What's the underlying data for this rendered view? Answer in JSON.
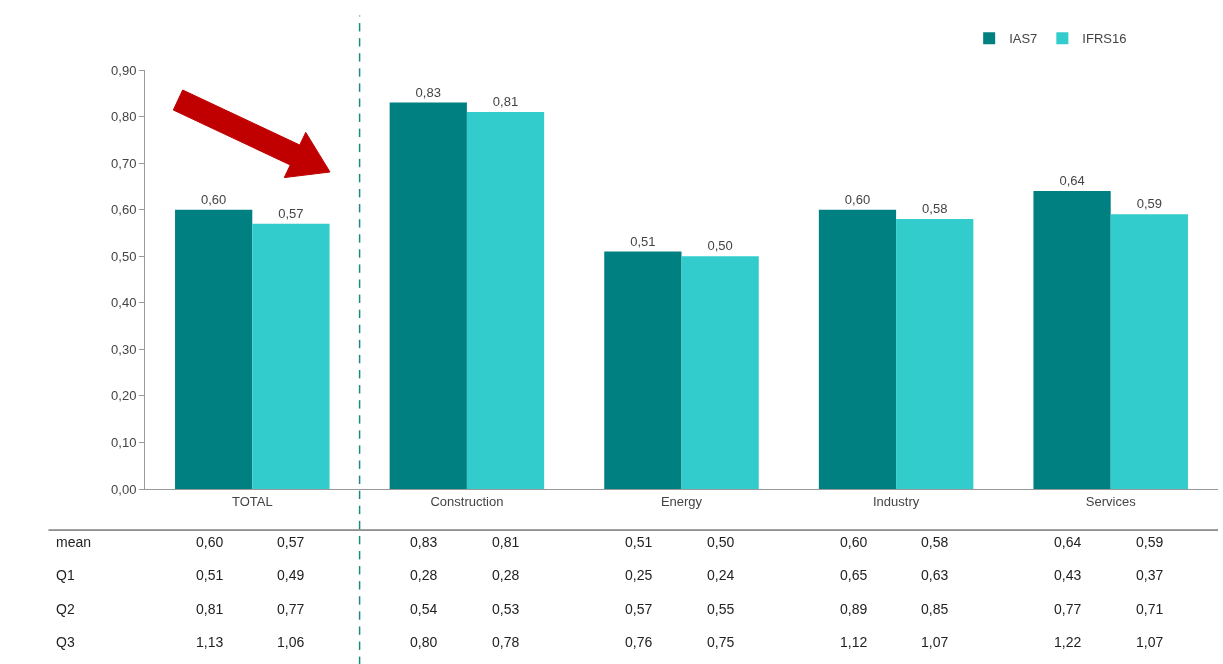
{
  "chart_data": {
    "type": "bar",
    "categories": [
      "TOTAL",
      "Construction",
      "Energy",
      "Industry",
      "Services"
    ],
    "series": [
      {
        "name": "IAS7",
        "color": "#008080",
        "values": [
          0.6,
          0.83,
          0.51,
          0.6,
          0.64
        ],
        "value_labels": [
          "0,60",
          "0,83",
          "0,51",
          "0,60",
          "0,64"
        ]
      },
      {
        "name": "IFRS16",
        "color": "#33cccc",
        "values": [
          0.57,
          0.81,
          0.5,
          0.58,
          0.59
        ],
        "value_labels": [
          "0,57",
          "0,81",
          "0,50",
          "0,58",
          "0,59"
        ]
      }
    ],
    "ylim": [
      0,
      0.9
    ],
    "yticks": [
      {
        "value": 0,
        "label": "0,00"
      },
      {
        "value": 0.1,
        "label": "0,10"
      },
      {
        "value": 0.2,
        "label": "0,20"
      },
      {
        "value": 0.3,
        "label": "0,30"
      },
      {
        "value": 0.4,
        "label": "0,40"
      },
      {
        "value": 0.5,
        "label": "0,50"
      },
      {
        "value": 0.6,
        "label": "0,60"
      },
      {
        "value": 0.7,
        "label": "0,70"
      },
      {
        "value": 0.8,
        "label": "0,80"
      },
      {
        "value": 0.9,
        "label": "0,90"
      }
    ],
    "legend": "top right",
    "annotations": [
      "mean",
      "0,60",
      "0,57",
      "0,83",
      "0,81",
      "0,51",
      "0,50",
      "0,60",
      "0,58",
      "0,64",
      "0,59",
      "Q1",
      "0,51",
      "0,49",
      "0,28",
      "0,28",
      "0,25",
      "0,24",
      "0,65",
      "0,63",
      "0,43",
      "0,37",
      "Q2",
      "0,81",
      "0,77",
      "0,54",
      "0,53",
      "0,57",
      "0,55",
      "0,89",
      "0,85",
      "0,77",
      "0,71",
      "Q3",
      "1,13",
      "1,06",
      "0,80",
      "0,78",
      "0,76",
      "0,75",
      "1,12",
      "1,07",
      "1,22",
      "1,07"
    ]
  }
}
